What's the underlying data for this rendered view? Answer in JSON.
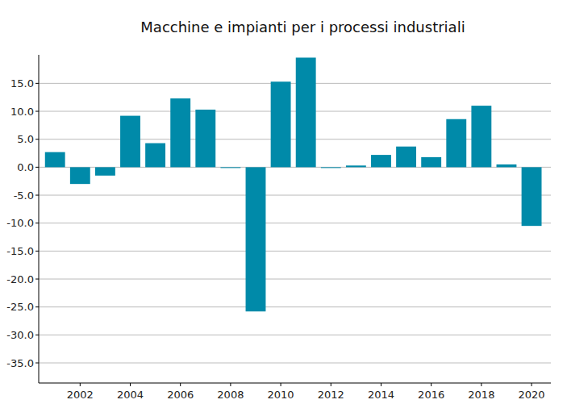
{
  "chart_data": {
    "type": "bar",
    "title": "Macchine e impianti per i processi industriali",
    "x": [
      2001,
      2002,
      2003,
      2004,
      2005,
      2006,
      2007,
      2008,
      2009,
      2010,
      2011,
      2012,
      2013,
      2014,
      2015,
      2016,
      2017,
      2018,
      2019,
      2020
    ],
    "values": [
      2.7,
      -3.0,
      -1.5,
      9.2,
      4.3,
      12.3,
      10.3,
      -0.1,
      -25.8,
      15.3,
      19.6,
      -0.1,
      0.3,
      2.2,
      3.7,
      1.8,
      8.6,
      11.0,
      0.5,
      -10.5
    ],
    "color": "#008aa9",
    "xlim": [
      2000.35,
      2020.77
    ],
    "xticks": [
      2002,
      2004,
      2006,
      2008,
      2010,
      2012,
      2014,
      2016,
      2018,
      2020
    ],
    "ylim": [
      -38.6,
      20.1
    ],
    "yticks": [
      {
        "value": -35,
        "label": "-35.0"
      },
      {
        "value": -30,
        "label": "-30.0"
      },
      {
        "value": -25,
        "label": "-25.0"
      },
      {
        "value": -20,
        "label": "-20.0"
      },
      {
        "value": -15,
        "label": "-15.0"
      },
      {
        "value": -10,
        "label": "-10.0"
      },
      {
        "value": -5,
        "label": "-5.0"
      },
      {
        "value": 0,
        "label": "0.0"
      },
      {
        "value": 5,
        "label": "5.0"
      },
      {
        "value": 10,
        "label": "10.0"
      },
      {
        "value": 15,
        "label": "15.0"
      }
    ],
    "grid": true
  }
}
